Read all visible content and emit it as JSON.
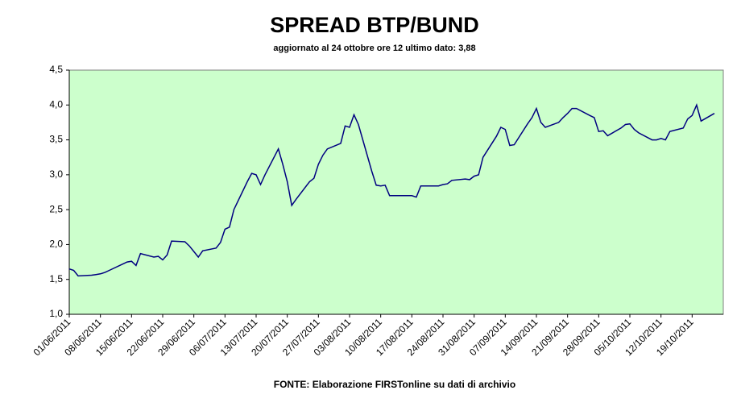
{
  "chart_data": {
    "type": "line",
    "title": "SPREAD BTP/BUND",
    "subtitle": "aggiornato al 24 ottobre ore 12 ultimo dato: 3,88",
    "source": "FONTE: Elaborazione FIRSTonline su dati di archivio",
    "x": [
      "01/06/2011",
      "02/06/2011",
      "03/06/2011",
      "06/06/2011",
      "07/06/2011",
      "08/06/2011",
      "09/06/2011",
      "10/06/2011",
      "13/06/2011",
      "14/06/2011",
      "15/06/2011",
      "16/06/2011",
      "17/06/2011",
      "20/06/2011",
      "21/06/2011",
      "22/06/2011",
      "23/06/2011",
      "24/06/2011",
      "27/06/2011",
      "28/06/2011",
      "29/06/2011",
      "30/06/2011",
      "01/07/2011",
      "04/07/2011",
      "05/07/2011",
      "06/07/2011",
      "07/07/2011",
      "08/07/2011",
      "11/07/2011",
      "12/07/2011",
      "13/07/2011",
      "14/07/2011",
      "15/07/2011",
      "18/07/2011",
      "19/07/2011",
      "20/07/2011",
      "21/07/2011",
      "22/07/2011",
      "25/07/2011",
      "26/07/2011",
      "27/07/2011",
      "28/07/2011",
      "29/07/2011",
      "01/08/2011",
      "02/08/2011",
      "03/08/2011",
      "04/08/2011",
      "05/08/2011",
      "08/08/2011",
      "09/08/2011",
      "10/08/2011",
      "11/08/2011",
      "12/08/2011",
      "15/08/2011",
      "16/08/2011",
      "17/08/2011",
      "18/08/2011",
      "19/08/2011",
      "22/08/2011",
      "23/08/2011",
      "24/08/2011",
      "25/08/2011",
      "26/08/2011",
      "29/08/2011",
      "30/08/2011",
      "31/08/2011",
      "01/09/2011",
      "02/09/2011",
      "05/09/2011",
      "06/09/2011",
      "07/09/2011",
      "08/09/2011",
      "09/09/2011",
      "12/09/2011",
      "13/09/2011",
      "14/09/2011",
      "15/09/2011",
      "16/09/2011",
      "19/09/2011",
      "20/09/2011",
      "21/09/2011",
      "22/09/2011",
      "23/09/2011",
      "26/09/2011",
      "27/09/2011",
      "28/09/2011",
      "29/09/2011",
      "30/09/2011",
      "03/10/2011",
      "04/10/2011",
      "05/10/2011",
      "06/10/2011",
      "07/10/2011",
      "10/10/2011",
      "11/10/2011",
      "12/10/2011",
      "13/10/2011",
      "14/10/2011",
      "17/10/2011",
      "18/10/2011",
      "19/10/2011",
      "20/10/2011",
      "21/10/2011",
      "24/10/2011"
    ],
    "values": [
      1.65,
      1.63,
      1.55,
      1.56,
      1.57,
      1.58,
      1.6,
      1.63,
      1.72,
      1.75,
      1.76,
      1.7,
      1.87,
      1.82,
      1.83,
      1.78,
      1.85,
      2.05,
      2.04,
      1.98,
      1.9,
      1.82,
      1.91,
      1.95,
      2.03,
      2.22,
      2.25,
      2.5,
      2.9,
      3.02,
      3.0,
      2.86,
      3.0,
      3.37,
      3.15,
      2.9,
      2.56,
      2.65,
      2.9,
      2.95,
      3.15,
      3.28,
      3.37,
      3.45,
      3.7,
      3.68,
      3.86,
      3.72,
      3.05,
      2.85,
      2.84,
      2.85,
      2.7,
      2.7,
      2.7,
      2.7,
      2.68,
      2.84,
      2.84,
      2.84,
      2.86,
      2.87,
      2.92,
      2.94,
      2.93,
      2.98,
      3.0,
      3.25,
      3.55,
      3.68,
      3.65,
      3.42,
      3.43,
      3.73,
      3.82,
      3.95,
      3.75,
      3.68,
      3.75,
      3.82,
      3.88,
      3.95,
      3.95,
      3.85,
      3.82,
      3.62,
      3.63,
      3.56,
      3.67,
      3.72,
      3.73,
      3.65,
      3.6,
      3.5,
      3.5,
      3.52,
      3.5,
      3.62,
      3.67,
      3.8,
      3.85,
      4.0,
      3.77,
      3.88
    ],
    "color": "#000080",
    "background": "#ccffcc",
    "grid": false,
    "xlim": [
      "01/06/2011",
      "26/10/2011"
    ],
    "xticks": [
      "01/06/2011",
      "08/06/2011",
      "15/06/2011",
      "22/06/2011",
      "29/06/2011",
      "06/07/2011",
      "13/07/2011",
      "20/07/2011",
      "27/07/2011",
      "03/08/2011",
      "10/08/2011",
      "17/08/2011",
      "24/08/2011",
      "31/08/2011",
      "07/09/2011",
      "14/09/2011",
      "21/09/2011",
      "28/09/2011",
      "05/10/2011",
      "12/10/2011",
      "19/10/2011"
    ],
    "ylim": [
      1,
      4.5
    ],
    "yticks": [
      {
        "value": 1,
        "label": "1,0"
      },
      {
        "value": 1.5,
        "label": "1,5"
      },
      {
        "value": 2,
        "label": "2,0"
      },
      {
        "value": 2.5,
        "label": "2,5"
      },
      {
        "value": 3,
        "label": "3,0"
      },
      {
        "value": 3.5,
        "label": "3,5"
      },
      {
        "value": 4,
        "label": "4,0"
      },
      {
        "value": 4.5,
        "label": "4,5"
      }
    ]
  }
}
